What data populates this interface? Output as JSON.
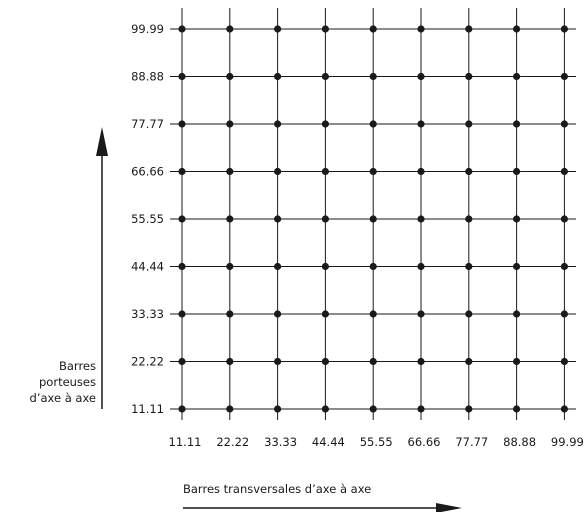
{
  "grid": {
    "x_values": [
      "11.11",
      "22.22",
      "33.33",
      "44.44",
      "55.55",
      "66.66",
      "77.77",
      "88.88",
      "99.99"
    ],
    "y_values": [
      "11.11",
      "22.22",
      "33.33",
      "44.44",
      "55.55",
      "66.66",
      "77.77",
      "88.88",
      "99.99"
    ]
  },
  "labels": {
    "y_axis_lines": [
      "Barres",
      "porteuses",
      "d’axe à axe"
    ],
    "x_axis": "Barres transversales d’axe à axe"
  },
  "colors": {
    "line": "#1a1a1a",
    "background": "#ffffff"
  }
}
